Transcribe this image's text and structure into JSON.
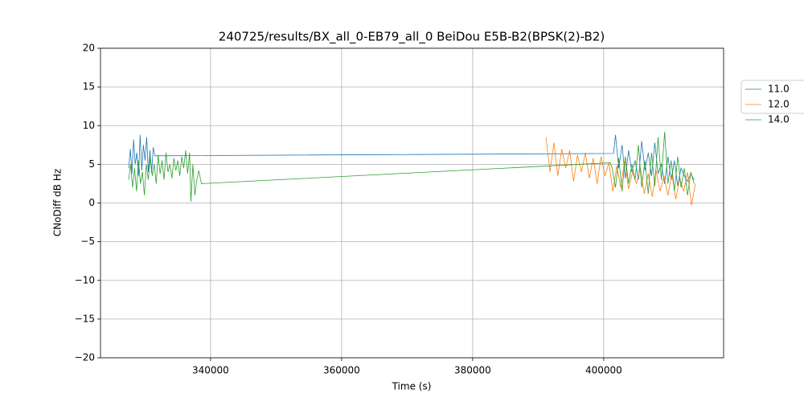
{
  "chart_data": {
    "type": "line",
    "title": "240725/results/BX_all_0-EB79_all_0 BeiDou E5B-B2(BPSK(2)-B2)",
    "x_label": "Time (s)",
    "y_label": "CNoDiff dB Hz",
    "xlim": [
      323200,
      418300
    ],
    "ylim": [
      -20,
      20
    ],
    "xticks": [
      340000,
      360000,
      380000,
      400000
    ],
    "yticks": [
      {
        "value": -20,
        "label": "−20"
      },
      {
        "value": -15,
        "label": "−15"
      },
      {
        "value": -10,
        "label": "−10"
      },
      {
        "value": -5,
        "label": "−5"
      },
      0,
      5,
      10,
      15,
      20
    ],
    "grid": true,
    "legend": "outside-upper-right",
    "series": [
      {
        "name": "11.0",
        "color": "#1f77b4",
        "x": [
          327500,
          327750,
          328000,
          328250,
          328500,
          328750,
          329000,
          329250,
          329500,
          329750,
          330000,
          330250,
          330500,
          330750,
          331000,
          331250,
          331500,
          401500,
          401800,
          402300,
          402800,
          403300,
          403800,
          404300,
          404800,
          405300,
          405800,
          406300,
          406800,
          407300,
          407800,
          408300,
          408800,
          409300,
          409800,
          410300,
          410800,
          411300,
          411800,
          412300,
          412800,
          413300,
          413800
        ],
        "values": [
          4.5,
          7.0,
          3.8,
          8.2,
          5.0,
          6.5,
          3.5,
          8.8,
          4.2,
          7.5,
          5.5,
          8.5,
          4.0,
          6.8,
          3.9,
          7.2,
          6.1,
          6.4,
          8.8,
          4.5,
          7.5,
          3.2,
          6.8,
          4.0,
          5.5,
          3.0,
          8.0,
          4.2,
          6.5,
          3.5,
          7.8,
          3.8,
          5.0,
          2.5,
          6.0,
          3.0,
          5.5,
          2.2,
          4.5,
          3.5,
          2.8,
          3.8,
          3.0
        ]
      },
      {
        "name": "12.0",
        "color": "#ff7f0e",
        "x": [
          391200,
          391800,
          392400,
          393000,
          393600,
          394200,
          394800,
          395400,
          396000,
          396600,
          397200,
          397800,
          398400,
          399000,
          399600,
          400200,
          400800,
          401400,
          402000,
          402600,
          403200,
          403800,
          404400,
          405000,
          405600,
          406200,
          406800,
          407400,
          408000,
          408600,
          409200,
          409800,
          410400,
          411000,
          411600,
          412200,
          412800,
          413400,
          414000
        ],
        "values": [
          8.5,
          4.0,
          7.8,
          3.5,
          7.0,
          4.5,
          6.8,
          2.8,
          6.2,
          4.0,
          6.5,
          3.2,
          5.8,
          2.5,
          6.0,
          3.5,
          5.2,
          1.5,
          4.8,
          2.0,
          5.5,
          1.8,
          4.0,
          2.5,
          4.5,
          1.2,
          3.8,
          0.8,
          4.2,
          1.5,
          3.5,
          1.0,
          3.8,
          0.5,
          3.2,
          1.5,
          4.0,
          -0.3,
          2.5
        ]
      },
      {
        "name": "14.0",
        "color": "#2ca02c",
        "x": [
          327500,
          327800,
          328100,
          328400,
          328700,
          329000,
          329300,
          329600,
          329900,
          330200,
          330500,
          330800,
          331100,
          331400,
          331700,
          332000,
          332300,
          332600,
          332900,
          333200,
          333500,
          333800,
          334100,
          334400,
          334700,
          335000,
          335300,
          335600,
          335900,
          336200,
          336500,
          336800,
          337000,
          337300,
          337600,
          337900,
          338200,
          338600,
          401000,
          401300,
          401800,
          402300,
          402800,
          403300,
          403800,
          404300,
          404800,
          405300,
          405800,
          406300,
          406800,
          407300,
          407800,
          408300,
          408800,
          409300,
          409800,
          410300,
          410800,
          411300,
          411800,
          412300,
          412800,
          413300,
          413800
        ],
        "values": [
          3,
          5,
          2,
          4.5,
          1.5,
          5.5,
          2.5,
          4,
          1,
          5,
          3,
          6,
          3.5,
          5,
          2.5,
          6.2,
          3.8,
          5.5,
          3,
          6.5,
          4,
          5,
          3.2,
          5.8,
          4.2,
          5.5,
          3.5,
          6,
          4.5,
          6.8,
          3.8,
          6.5,
          0.2,
          5,
          1.0,
          3.0,
          4.2,
          2.5,
          5.2,
          4.5,
          2,
          5.8,
          1.5,
          6,
          2.5,
          5,
          3,
          7.5,
          2,
          5.5,
          1.2,
          6.5,
          2.2,
          8.5,
          3,
          9.2,
          2.5,
          5.5,
          1.5,
          6,
          2,
          4.5,
          1,
          4,
          2.5
        ]
      }
    ]
  }
}
